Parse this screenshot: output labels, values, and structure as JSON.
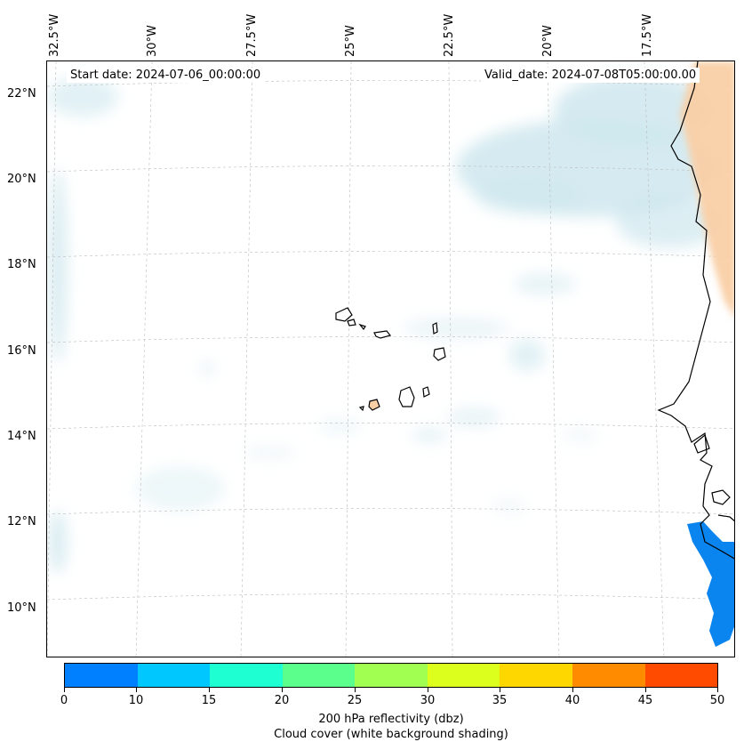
{
  "annotations": {
    "start_date": "Start date: 2024-07-06_00:00:00",
    "valid_date": "Valid_date: 2024-07-08T05:00:00.00"
  },
  "longitude_labels": [
    "32.5°W",
    "30°W",
    "27.5°W",
    "25°W",
    "22.5°W",
    "20°W",
    "17.5°W"
  ],
  "latitude_labels": [
    "22°N",
    "20°N",
    "18°N",
    "16°N",
    "14°N",
    "12°N",
    "10°N"
  ],
  "colorbar": {
    "ticks": [
      "0",
      "10",
      "15",
      "20",
      "25",
      "30",
      "35",
      "40",
      "45",
      "50"
    ],
    "colors": [
      "#0080ff",
      "#00c8ff",
      "#1effd2",
      "#5aff8c",
      "#a0ff50",
      "#dcff1e",
      "#ffd700",
      "#ff8c00",
      "#ff4b00"
    ],
    "label_line1": "200 hPa reflectivity (dbz)",
    "label_line2": "Cloud cover (white background shading)"
  },
  "colors": {
    "cloud": "#cfe7ee",
    "land_warm": "#f9cfa6",
    "reflectivity_low": "#0a84ee",
    "gridline": "#bbbbbb",
    "coast": "#000000"
  }
}
